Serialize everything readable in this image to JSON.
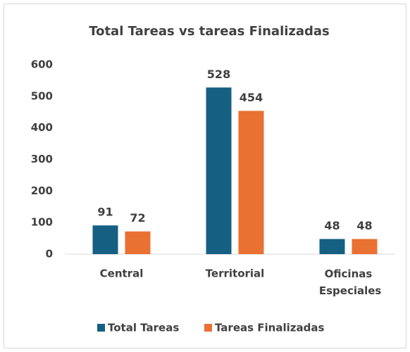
{
  "chart_data": {
    "type": "bar",
    "title": "Total Tareas vs tareas Finalizadas",
    "categories": [
      "Central",
      "Territorial",
      "Oficinas Especiales"
    ],
    "series": [
      {
        "name": "Total Tareas",
        "color": "#156082",
        "values": [
          91,
          528,
          48
        ]
      },
      {
        "name": "Tareas Finalizadas",
        "color": "#e97132",
        "values": [
          72,
          454,
          48
        ]
      }
    ],
    "ylim": [
      0,
      600
    ],
    "yticks": [
      0,
      100,
      200,
      300,
      400,
      500,
      600
    ],
    "grid": false,
    "legend": "bottom"
  }
}
